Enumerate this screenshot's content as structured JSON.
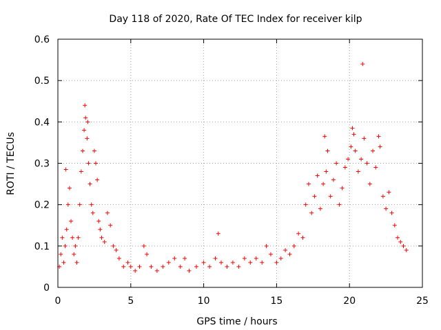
{
  "chart_data": {
    "type": "scatter",
    "title": "Day 118 of 2020, Rate Of TEC Index for receiver kilp",
    "xlabel": "GPS time / hours",
    "ylabel": "ROTI / TECUs",
    "xlim": [
      0,
      25
    ],
    "ylim": [
      0,
      0.6
    ],
    "xticks": [
      "0",
      "5",
      "10",
      "15",
      "20",
      "25"
    ],
    "yticks": [
      "0",
      "0.1",
      "0.2",
      "0.3",
      "0.4",
      "0.5",
      "0.6"
    ],
    "grid": true,
    "marker": "+",
    "color": "#ff0000",
    "series": [
      {
        "name": "ROTI",
        "points": [
          [
            0.1,
            0.05
          ],
          [
            0.2,
            0.08
          ],
          [
            0.3,
            0.12
          ],
          [
            0.4,
            0.06
          ],
          [
            0.5,
            0.1
          ],
          [
            0.55,
            0.285
          ],
          [
            0.6,
            0.14
          ],
          [
            0.7,
            0.2
          ],
          [
            0.8,
            0.24
          ],
          [
            0.9,
            0.16
          ],
          [
            1.0,
            0.12
          ],
          [
            1.1,
            0.08
          ],
          [
            1.2,
            0.1
          ],
          [
            1.3,
            0.06
          ],
          [
            1.4,
            0.12
          ],
          [
            1.5,
            0.2
          ],
          [
            1.6,
            0.28
          ],
          [
            1.7,
            0.33
          ],
          [
            1.8,
            0.38
          ],
          [
            1.85,
            0.44
          ],
          [
            1.9,
            0.41
          ],
          [
            2.0,
            0.36
          ],
          [
            2.05,
            0.4
          ],
          [
            2.1,
            0.3
          ],
          [
            2.2,
            0.25
          ],
          [
            2.3,
            0.2
          ],
          [
            2.4,
            0.18
          ],
          [
            2.5,
            0.33
          ],
          [
            2.6,
            0.3
          ],
          [
            2.7,
            0.26
          ],
          [
            2.8,
            0.16
          ],
          [
            2.9,
            0.14
          ],
          [
            3.0,
            0.12
          ],
          [
            3.2,
            0.11
          ],
          [
            3.4,
            0.18
          ],
          [
            3.6,
            0.15
          ],
          [
            3.8,
            0.1
          ],
          [
            4.0,
            0.09
          ],
          [
            4.2,
            0.07
          ],
          [
            4.5,
            0.05
          ],
          [
            4.8,
            0.06
          ],
          [
            5.0,
            0.05
          ],
          [
            5.3,
            0.04
          ],
          [
            5.6,
            0.05
          ],
          [
            5.9,
            0.1
          ],
          [
            6.1,
            0.08
          ],
          [
            6.4,
            0.05
          ],
          [
            6.8,
            0.04
          ],
          [
            7.2,
            0.05
          ],
          [
            7.6,
            0.06
          ],
          [
            8.0,
            0.07
          ],
          [
            8.4,
            0.05
          ],
          [
            8.7,
            0.07
          ],
          [
            9.0,
            0.04
          ],
          [
            9.5,
            0.05
          ],
          [
            10.0,
            0.06
          ],
          [
            10.4,
            0.05
          ],
          [
            10.8,
            0.07
          ],
          [
            11.0,
            0.13
          ],
          [
            11.2,
            0.06
          ],
          [
            11.6,
            0.05
          ],
          [
            12.0,
            0.06
          ],
          [
            12.4,
            0.05
          ],
          [
            12.8,
            0.07
          ],
          [
            13.2,
            0.06
          ],
          [
            13.6,
            0.07
          ],
          [
            14.0,
            0.06
          ],
          [
            14.3,
            0.1
          ],
          [
            14.6,
            0.08
          ],
          [
            15.0,
            0.06
          ],
          [
            15.3,
            0.07
          ],
          [
            15.6,
            0.09
          ],
          [
            15.9,
            0.08
          ],
          [
            16.2,
            0.1
          ],
          [
            16.5,
            0.13
          ],
          [
            16.8,
            0.12
          ],
          [
            17.0,
            0.2
          ],
          [
            17.2,
            0.25
          ],
          [
            17.4,
            0.18
          ],
          [
            17.6,
            0.22
          ],
          [
            17.8,
            0.27
          ],
          [
            18.0,
            0.19
          ],
          [
            18.2,
            0.25
          ],
          [
            18.3,
            0.365
          ],
          [
            18.4,
            0.28
          ],
          [
            18.5,
            0.33
          ],
          [
            18.7,
            0.22
          ],
          [
            18.9,
            0.26
          ],
          [
            19.1,
            0.3
          ],
          [
            19.3,
            0.2
          ],
          [
            19.5,
            0.24
          ],
          [
            19.7,
            0.29
          ],
          [
            19.9,
            0.31
          ],
          [
            20.1,
            0.34
          ],
          [
            20.2,
            0.385
          ],
          [
            20.3,
            0.37
          ],
          [
            20.4,
            0.33
          ],
          [
            20.6,
            0.28
          ],
          [
            20.8,
            0.31
          ],
          [
            20.9,
            0.54
          ],
          [
            21.0,
            0.36
          ],
          [
            21.2,
            0.3
          ],
          [
            21.4,
            0.25
          ],
          [
            21.6,
            0.33
          ],
          [
            21.8,
            0.29
          ],
          [
            22.0,
            0.365
          ],
          [
            22.1,
            0.34
          ],
          [
            22.3,
            0.22
          ],
          [
            22.5,
            0.19
          ],
          [
            22.7,
            0.23
          ],
          [
            22.9,
            0.18
          ],
          [
            23.1,
            0.15
          ],
          [
            23.3,
            0.12
          ],
          [
            23.5,
            0.11
          ],
          [
            23.7,
            0.1
          ],
          [
            23.9,
            0.09
          ]
        ]
      }
    ]
  }
}
